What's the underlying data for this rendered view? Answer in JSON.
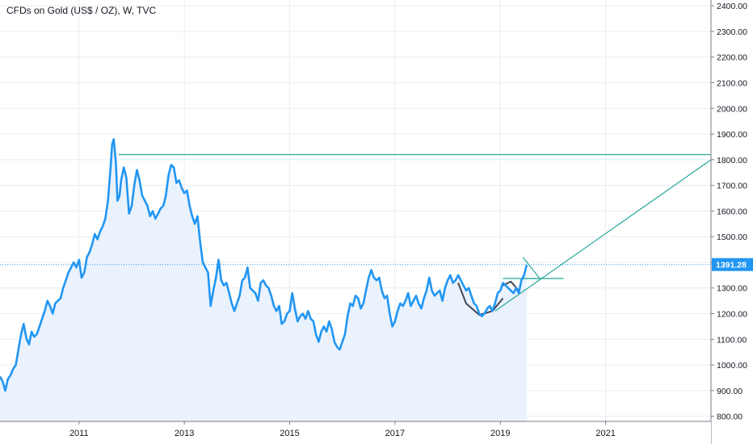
{
  "header": {
    "title": "CFDs on Gold (US$ / OZ), W, TVC"
  },
  "colors": {
    "price_line": "#2196f3",
    "area_fill": "#eaf2fd",
    "trend_line": "#26a69a",
    "pattern_line": "#434651",
    "last_price_line": "#2196f3",
    "grid": "#e9ecf1",
    "axis_border": "#787b86"
  },
  "chart_data": {
    "type": "line",
    "y_tick_labels": [
      "2400.00",
      "2300.00",
      "2200.00",
      "2100.00",
      "2000.00",
      "1900.00",
      "1800.00",
      "1700.00",
      "1600.00",
      "1500.00",
      "1400.00",
      "1300.00",
      "1200.00",
      "1100.00",
      "1000.00",
      "900.00",
      "800.00"
    ],
    "y_ticks": [
      2400,
      2300,
      2200,
      2100,
      2000,
      1900,
      1800,
      1700,
      1600,
      1500,
      1400,
      1300,
      1200,
      1100,
      1000,
      900,
      800
    ],
    "x_tick_labels": [
      "2011",
      "2013",
      "2015",
      "2017",
      "2019",
      "2021"
    ],
    "x_ticks": [
      2011,
      2013,
      2015,
      2017,
      2019,
      2021
    ],
    "xlim": [
      2009.5,
      2023.0
    ],
    "ylim": [
      780,
      2410
    ],
    "last_price": 1391.28,
    "last_price_label": "1391.28",
    "series": [
      {
        "values": [
          [
            2009.5,
            955
          ],
          [
            2009.55,
            935
          ],
          [
            2009.6,
            900
          ],
          [
            2009.65,
            945
          ],
          [
            2009.7,
            960
          ],
          [
            2009.75,
            985
          ],
          [
            2009.8,
            1000
          ],
          [
            2009.85,
            1060
          ],
          [
            2009.9,
            1120
          ],
          [
            2009.95,
            1160
          ],
          [
            2010.0,
            1105
          ],
          [
            2010.05,
            1080
          ],
          [
            2010.1,
            1130
          ],
          [
            2010.15,
            1110
          ],
          [
            2010.2,
            1120
          ],
          [
            2010.25,
            1150
          ],
          [
            2010.3,
            1180
          ],
          [
            2010.35,
            1210
          ],
          [
            2010.4,
            1250
          ],
          [
            2010.45,
            1230
          ],
          [
            2010.5,
            1200
          ],
          [
            2010.55,
            1240
          ],
          [
            2010.6,
            1250
          ],
          [
            2010.65,
            1260
          ],
          [
            2010.7,
            1300
          ],
          [
            2010.75,
            1330
          ],
          [
            2010.8,
            1360
          ],
          [
            2010.85,
            1380
          ],
          [
            2010.9,
            1400
          ],
          [
            2010.95,
            1380
          ],
          [
            2011.0,
            1410
          ],
          [
            2011.05,
            1340
          ],
          [
            2011.1,
            1360
          ],
          [
            2011.15,
            1420
          ],
          [
            2011.2,
            1440
          ],
          [
            2011.25,
            1470
          ],
          [
            2011.3,
            1510
          ],
          [
            2011.35,
            1490
          ],
          [
            2011.4,
            1520
          ],
          [
            2011.45,
            1540
          ],
          [
            2011.5,
            1570
          ],
          [
            2011.55,
            1640
          ],
          [
            2011.6,
            1770
          ],
          [
            2011.63,
            1860
          ],
          [
            2011.66,
            1880
          ],
          [
            2011.7,
            1790
          ],
          [
            2011.73,
            1640
          ],
          [
            2011.77,
            1660
          ],
          [
            2011.8,
            1720
          ],
          [
            2011.85,
            1770
          ],
          [
            2011.9,
            1730
          ],
          [
            2011.95,
            1590
          ],
          [
            2012.0,
            1620
          ],
          [
            2012.05,
            1700
          ],
          [
            2012.1,
            1760
          ],
          [
            2012.15,
            1720
          ],
          [
            2012.2,
            1660
          ],
          [
            2012.25,
            1640
          ],
          [
            2012.3,
            1620
          ],
          [
            2012.35,
            1580
          ],
          [
            2012.4,
            1600
          ],
          [
            2012.45,
            1570
          ],
          [
            2012.5,
            1590
          ],
          [
            2012.55,
            1610
          ],
          [
            2012.6,
            1620
          ],
          [
            2012.65,
            1660
          ],
          [
            2012.7,
            1740
          ],
          [
            2012.75,
            1780
          ],
          [
            2012.8,
            1770
          ],
          [
            2012.85,
            1710
          ],
          [
            2012.9,
            1720
          ],
          [
            2012.95,
            1690
          ],
          [
            2013.0,
            1670
          ],
          [
            2013.05,
            1680
          ],
          [
            2013.1,
            1620
          ],
          [
            2013.15,
            1580
          ],
          [
            2013.2,
            1550
          ],
          [
            2013.25,
            1580
          ],
          [
            2013.3,
            1480
          ],
          [
            2013.35,
            1400
          ],
          [
            2013.4,
            1380
          ],
          [
            2013.45,
            1360
          ],
          [
            2013.5,
            1230
          ],
          [
            2013.55,
            1290
          ],
          [
            2013.6,
            1340
          ],
          [
            2013.65,
            1410
          ],
          [
            2013.7,
            1330
          ],
          [
            2013.75,
            1310
          ],
          [
            2013.8,
            1320
          ],
          [
            2013.85,
            1280
          ],
          [
            2013.9,
            1240
          ],
          [
            2013.95,
            1210
          ],
          [
            2014.0,
            1240
          ],
          [
            2014.05,
            1270
          ],
          [
            2014.1,
            1330
          ],
          [
            2014.15,
            1340
          ],
          [
            2014.2,
            1380
          ],
          [
            2014.25,
            1300
          ],
          [
            2014.3,
            1290
          ],
          [
            2014.35,
            1280
          ],
          [
            2014.4,
            1250
          ],
          [
            2014.45,
            1320
          ],
          [
            2014.5,
            1330
          ],
          [
            2014.55,
            1310
          ],
          [
            2014.6,
            1300
          ],
          [
            2014.65,
            1270
          ],
          [
            2014.7,
            1230
          ],
          [
            2014.75,
            1210
          ],
          [
            2014.8,
            1230
          ],
          [
            2014.85,
            1160
          ],
          [
            2014.9,
            1170
          ],
          [
            2014.95,
            1200
          ],
          [
            2015.0,
            1210
          ],
          [
            2015.05,
            1280
          ],
          [
            2015.1,
            1220
          ],
          [
            2015.15,
            1170
          ],
          [
            2015.2,
            1190
          ],
          [
            2015.25,
            1200
          ],
          [
            2015.3,
            1180
          ],
          [
            2015.35,
            1210
          ],
          [
            2015.4,
            1180
          ],
          [
            2015.45,
            1170
          ],
          [
            2015.5,
            1120
          ],
          [
            2015.55,
            1090
          ],
          [
            2015.6,
            1130
          ],
          [
            2015.65,
            1150
          ],
          [
            2015.7,
            1130
          ],
          [
            2015.75,
            1170
          ],
          [
            2015.8,
            1140
          ],
          [
            2015.85,
            1090
          ],
          [
            2015.9,
            1070
          ],
          [
            2015.95,
            1060
          ],
          [
            2016.0,
            1090
          ],
          [
            2016.05,
            1120
          ],
          [
            2016.1,
            1190
          ],
          [
            2016.15,
            1240
          ],
          [
            2016.2,
            1230
          ],
          [
            2016.25,
            1270
          ],
          [
            2016.3,
            1260
          ],
          [
            2016.35,
            1220
          ],
          [
            2016.4,
            1240
          ],
          [
            2016.45,
            1290
          ],
          [
            2016.5,
            1340
          ],
          [
            2016.55,
            1370
          ],
          [
            2016.6,
            1340
          ],
          [
            2016.65,
            1330
          ],
          [
            2016.7,
            1340
          ],
          [
            2016.75,
            1290
          ],
          [
            2016.8,
            1260
          ],
          [
            2016.85,
            1270
          ],
          [
            2016.9,
            1200
          ],
          [
            2016.95,
            1150
          ],
          [
            2017.0,
            1170
          ],
          [
            2017.05,
            1210
          ],
          [
            2017.1,
            1240
          ],
          [
            2017.15,
            1230
          ],
          [
            2017.2,
            1250
          ],
          [
            2017.25,
            1280
          ],
          [
            2017.3,
            1230
          ],
          [
            2017.35,
            1250
          ],
          [
            2017.4,
            1270
          ],
          [
            2017.45,
            1240
          ],
          [
            2017.5,
            1220
          ],
          [
            2017.55,
            1260
          ],
          [
            2017.6,
            1290
          ],
          [
            2017.65,
            1340
          ],
          [
            2017.7,
            1290
          ],
          [
            2017.75,
            1270
          ],
          [
            2017.8,
            1280
          ],
          [
            2017.85,
            1290
          ],
          [
            2017.9,
            1250
          ],
          [
            2017.95,
            1300
          ],
          [
            2018.0,
            1330
          ],
          [
            2018.05,
            1350
          ],
          [
            2018.1,
            1320
          ],
          [
            2018.15,
            1330
          ],
          [
            2018.2,
            1350
          ],
          [
            2018.25,
            1330
          ],
          [
            2018.3,
            1310
          ],
          [
            2018.35,
            1290
          ],
          [
            2018.4,
            1300
          ],
          [
            2018.45,
            1270
          ],
          [
            2018.5,
            1240
          ],
          [
            2018.55,
            1230
          ],
          [
            2018.6,
            1200
          ],
          [
            2018.65,
            1190
          ],
          [
            2018.7,
            1200
          ],
          [
            2018.75,
            1220
          ],
          [
            2018.8,
            1230
          ],
          [
            2018.85,
            1210
          ],
          [
            2018.9,
            1240
          ],
          [
            2018.95,
            1280
          ],
          [
            2019.0,
            1290
          ],
          [
            2019.05,
            1320
          ],
          [
            2019.1,
            1310
          ],
          [
            2019.15,
            1300
          ],
          [
            2019.2,
            1290
          ],
          [
            2019.25,
            1280
          ],
          [
            2019.3,
            1300
          ],
          [
            2019.35,
            1280
          ],
          [
            2019.4,
            1330
          ],
          [
            2019.45,
            1350
          ],
          [
            2019.5,
            1390
          ]
        ]
      }
    ],
    "drawings": {
      "resistance_line": {
        "y": 1820,
        "x_start": 2011.75,
        "x_end": 2023.0
      },
      "neckline": {
        "y": 1337,
        "x_start": 2019.05,
        "x_end": 2020.2
      },
      "rising_trendline": {
        "points": [
          [
            2018.9,
            1210
          ],
          [
            2023.0,
            1800
          ]
        ]
      },
      "triangle": {
        "points": [
          [
            2019.43,
            1420
          ],
          [
            2019.75,
            1337
          ],
          [
            2019.43,
            1337
          ]
        ]
      },
      "cup_arc": {
        "points": [
          [
            2018.2,
            1320
          ],
          [
            2018.35,
            1240
          ],
          [
            2018.6,
            1195
          ],
          [
            2018.85,
            1210
          ],
          [
            2019.05,
            1260
          ]
        ]
      },
      "handle": {
        "points": [
          [
            2019.05,
            1310
          ],
          [
            2019.2,
            1325
          ],
          [
            2019.35,
            1290
          ]
        ]
      }
    }
  }
}
